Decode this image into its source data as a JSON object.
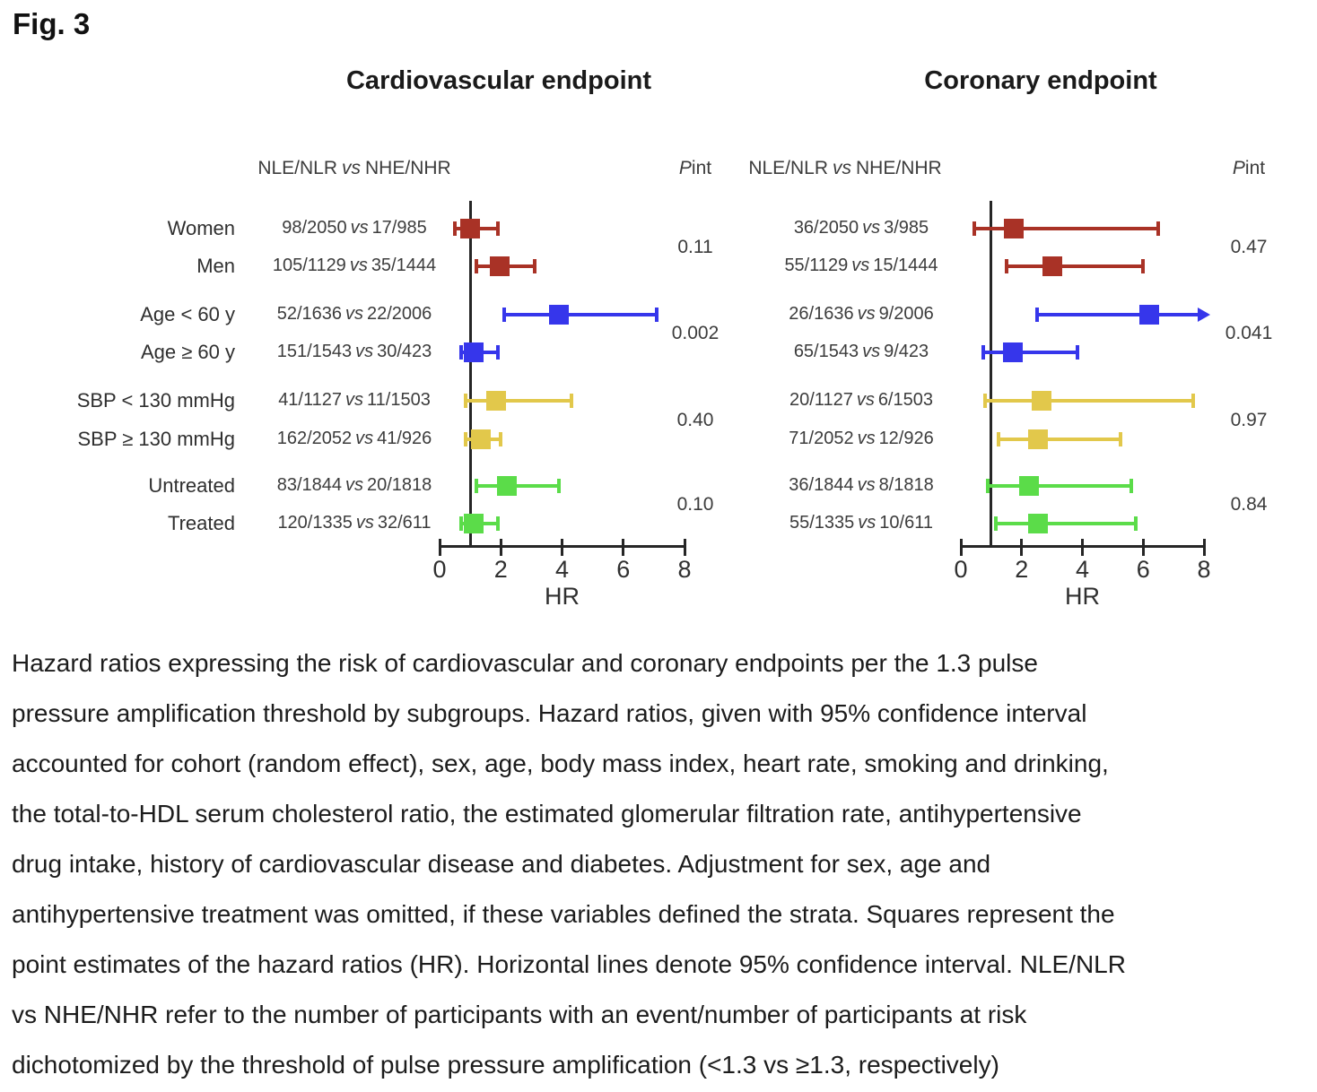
{
  "figure_label": "Fig. 3",
  "chart_data": [
    {
      "type": "forest",
      "title": "Cardiovascular endpoint",
      "col_header": {
        "left": "NLE/NLR",
        "vs": "vs",
        "right": "NHE/NHR"
      },
      "pint_header": {
        "p": "P",
        "sub": "int"
      },
      "xlabel": "HR",
      "xticks": [
        0,
        2,
        4,
        6,
        8
      ],
      "xlim": [
        0,
        8
      ],
      "refline": 1,
      "grid": false,
      "rows": [
        {
          "label": "Women",
          "nle_nlr": "98/2050",
          "nhe_nhr": "17/985",
          "hr": 1.0,
          "ci_low": 0.5,
          "ci_high": 1.9,
          "color": "#A93226",
          "arrow": false
        },
        {
          "label": "Men",
          "nle_nlr": "105/1129",
          "nhe_nhr": "35/1444",
          "hr": 1.95,
          "ci_low": 1.2,
          "ci_high": 3.1,
          "color": "#A93226",
          "arrow": false
        },
        {
          "label": "Age < 60 y",
          "nle_nlr": "52/1636",
          "nhe_nhr": "22/2006",
          "hr": 3.9,
          "ci_low": 2.1,
          "ci_high": 7.1,
          "color": "#3636EB",
          "arrow": false
        },
        {
          "label": "Age ≥ 60 y",
          "nle_nlr": "151/1543",
          "nhe_nhr": "30/423",
          "hr": 1.1,
          "ci_low": 0.7,
          "ci_high": 1.9,
          "color": "#3636EB",
          "arrow": false
        },
        {
          "label": "SBP < 130 mmHg",
          "nle_nlr": "41/1127",
          "nhe_nhr": "11/1503",
          "hr": 1.85,
          "ci_low": 0.85,
          "ci_high": 4.3,
          "color": "#E2C84B",
          "arrow": false
        },
        {
          "label": "SBP  ≥ 130 mmHg",
          "nle_nlr": "162/2052",
          "nhe_nhr": "41/926",
          "hr": 1.35,
          "ci_low": 0.85,
          "ci_high": 2.0,
          "color": "#E2C84B",
          "arrow": false
        },
        {
          "label": "Untreated",
          "nle_nlr": "83/1844",
          "nhe_nhr": "20/1818",
          "hr": 2.2,
          "ci_low": 1.2,
          "ci_high": 3.9,
          "color": "#5BDC49",
          "arrow": false
        },
        {
          "label": "Treated",
          "nle_nlr": "120/1335",
          "nhe_nhr": "32/611",
          "hr": 1.1,
          "ci_low": 0.7,
          "ci_high": 1.9,
          "color": "#5BDC49",
          "arrow": false
        }
      ],
      "pint_values": [
        "0.11",
        "0.002",
        "0.40",
        "0.10"
      ]
    },
    {
      "type": "forest",
      "title": "Coronary endpoint",
      "col_header": {
        "left": "NLE/NLR",
        "vs": "vs",
        "right": "NHE/NHR"
      },
      "pint_header": {
        "p": "P",
        "sub": "int"
      },
      "xlabel": "HR",
      "xticks": [
        0,
        2,
        4,
        6,
        8
      ],
      "xlim": [
        0,
        8
      ],
      "refline": 1,
      "grid": false,
      "rows": [
        {
          "label": "Women",
          "nle_nlr": "36/2050",
          "nhe_nhr": "3/985",
          "hr": 1.75,
          "ci_low": 0.45,
          "ci_high": 6.5,
          "color": "#A93226",
          "arrow": false
        },
        {
          "label": "Men",
          "nle_nlr": "55/1129",
          "nhe_nhr": "15/1444",
          "hr": 3.0,
          "ci_low": 1.5,
          "ci_high": 6.0,
          "color": "#A93226",
          "arrow": false
        },
        {
          "label": "Age < 60 y",
          "nle_nlr": "26/1636",
          "nhe_nhr": "9/2006",
          "hr": 6.2,
          "ci_low": 2.5,
          "ci_high": 7.85,
          "color": "#3636EB",
          "arrow": true
        },
        {
          "label": "Age ≥ 60 y",
          "nle_nlr": "65/1543",
          "nhe_nhr": "9/423",
          "hr": 1.7,
          "ci_low": 0.75,
          "ci_high": 3.85,
          "color": "#3636EB",
          "arrow": false
        },
        {
          "label": "SBP < 130 mmHg",
          "nle_nlr": "20/1127",
          "nhe_nhr": "6/1503",
          "hr": 2.65,
          "ci_low": 0.8,
          "ci_high": 7.65,
          "color": "#E2C84B",
          "arrow": false
        },
        {
          "label": "SBP  ≥ 130 mmHg",
          "nle_nlr": "71/2052",
          "nhe_nhr": "12/926",
          "hr": 2.55,
          "ci_low": 1.25,
          "ci_high": 5.25,
          "color": "#E2C84B",
          "arrow": false
        },
        {
          "label": "Untreated",
          "nle_nlr": "36/1844",
          "nhe_nhr": "8/1818",
          "hr": 2.25,
          "ci_low": 0.9,
          "ci_high": 5.6,
          "color": "#5BDC49",
          "arrow": false
        },
        {
          "label": "Treated",
          "nle_nlr": "55/1335",
          "nhe_nhr": "10/611",
          "hr": 2.55,
          "ci_low": 1.15,
          "ci_high": 5.75,
          "color": "#5BDC49",
          "arrow": false
        }
      ],
      "pint_values": [
        "0.47",
        "0.041",
        "0.97",
        "0.84"
      ]
    }
  ],
  "colors": {
    "sex_group": "#A93226",
    "age_group": "#3636EB",
    "sbp_group": "#E2C84B",
    "treatment_group": "#5BDC49",
    "axis": "#262626"
  },
  "caption_lines": [
    "Hazard ratios expressing the risk of cardiovascular and coronary endpoints per the 1.3 pulse",
    "pressure amplification threshold by subgroups. Hazard ratios, given with 95% confidence interval",
    "accounted for cohort (random effect), sex, age, body mass index, heart rate, smoking and drinking,",
    "the total-to-HDL serum cholesterol ratio, the estimated glomerular filtration rate, antihypertensive",
    "drug intake, history of cardiovascular disease and diabetes. Adjustment for sex, age and",
    "antihypertensive treatment was omitted, if these variables defined the strata. Squares represent the",
    "point estimates of the hazard ratios (HR). Horizontal lines denote 95% confidence interval. NLE/NLR",
    "vs NHE/NHR refer to the number of participants with an event/number of participants at risk",
    "dichotomized by the threshold of pulse pressure amplification (<1.3 vs ≥1.3, respectively)"
  ]
}
